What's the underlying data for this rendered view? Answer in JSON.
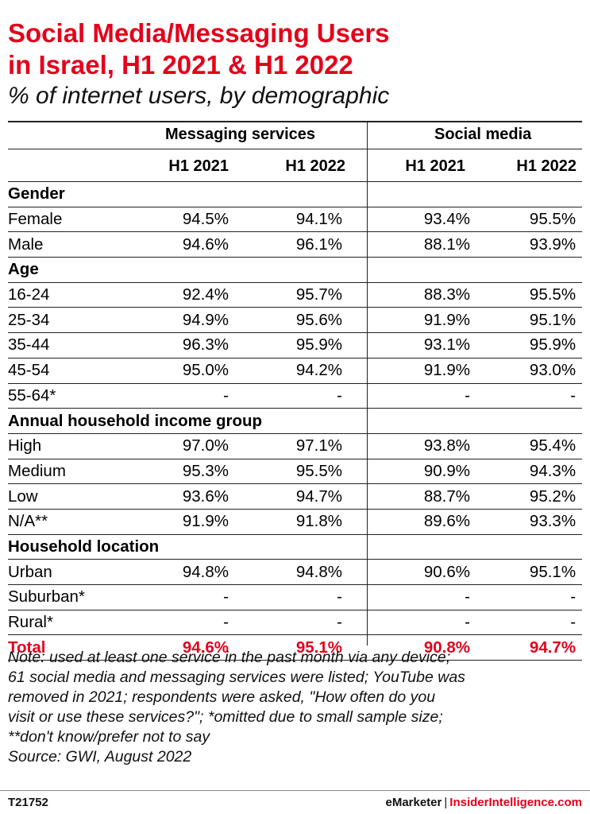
{
  "title_lines": [
    "Social Media/Messaging Users",
    "in Israel, H1 2021 & H1 2022"
  ],
  "subtitle": "% of internet users, by demographic",
  "groups": [
    "Messaging services",
    "Social media"
  ],
  "periods": [
    "H1 2021",
    "H1 2022",
    "H1 2021",
    "H1 2022"
  ],
  "rows": [
    {
      "type": "category",
      "label": "Gender",
      "values": [
        "",
        "",
        "",
        ""
      ]
    },
    {
      "type": "data",
      "label": "Female",
      "values": [
        "94.5%",
        "94.1%",
        "93.4%",
        "95.5%"
      ]
    },
    {
      "type": "data",
      "label": "Male",
      "values": [
        "94.6%",
        "96.1%",
        "88.1%",
        "93.9%"
      ]
    },
    {
      "type": "category",
      "label": "Age",
      "values": [
        "",
        "",
        "",
        ""
      ]
    },
    {
      "type": "data",
      "label": "16-24",
      "values": [
        "92.4%",
        "95.7%",
        "88.3%",
        "95.5%"
      ]
    },
    {
      "type": "data",
      "label": "25-34",
      "values": [
        "94.9%",
        "95.6%",
        "91.9%",
        "95.1%"
      ]
    },
    {
      "type": "data",
      "label": "35-44",
      "values": [
        "96.3%",
        "95.9%",
        "93.1%",
        "95.9%"
      ]
    },
    {
      "type": "data",
      "label": "45-54",
      "values": [
        "95.0%",
        "94.2%",
        "91.9%",
        "93.0%"
      ]
    },
    {
      "type": "data",
      "label": "55-64*",
      "values": [
        "-",
        "-",
        "-",
        "-"
      ]
    },
    {
      "type": "category",
      "label": "Annual household income group",
      "values": [
        "",
        "",
        "",
        ""
      ]
    },
    {
      "type": "data",
      "label": "High",
      "values": [
        "97.0%",
        "97.1%",
        "93.8%",
        "95.4%"
      ]
    },
    {
      "type": "data",
      "label": "Medium",
      "values": [
        "95.3%",
        "95.5%",
        "90.9%",
        "94.3%"
      ]
    },
    {
      "type": "data",
      "label": "Low",
      "values": [
        "93.6%",
        "94.7%",
        "88.7%",
        "95.2%"
      ]
    },
    {
      "type": "data",
      "label": "N/A**",
      "values": [
        "91.9%",
        "91.8%",
        "89.6%",
        "93.3%"
      ]
    },
    {
      "type": "category",
      "label": "Household location",
      "values": [
        "",
        "",
        "",
        ""
      ]
    },
    {
      "type": "data",
      "label": "Urban",
      "values": [
        "94.8%",
        "94.8%",
        "90.6%",
        "95.1%"
      ]
    },
    {
      "type": "data",
      "label": "Suburban*",
      "values": [
        "-",
        "-",
        "-",
        "-"
      ]
    },
    {
      "type": "data",
      "label": "Rural*",
      "values": [
        "-",
        "-",
        "-",
        "-"
      ]
    },
    {
      "type": "total",
      "label": "Total",
      "values": [
        "94.6%",
        "95.1%",
        "90.8%",
        "94.7%"
      ]
    }
  ],
  "note_lines": [
    "Note: used at least one service in the past month via any device;",
    "61 social media and messaging services were listed; YouTube was",
    "removed in 2021; respondents were asked, \"How often do you",
    "visit or use these services?\"; *omitted due to small sample size;",
    "**don't know/prefer not to say",
    "Source: GWI, August 2022"
  ],
  "footer": {
    "code": "T21752",
    "brand_left": "eMarketer",
    "separator": "|",
    "brand_right": "InsiderIntelligence.com"
  },
  "colors": {
    "accent": "#e3001b",
    "text": "#000000"
  }
}
